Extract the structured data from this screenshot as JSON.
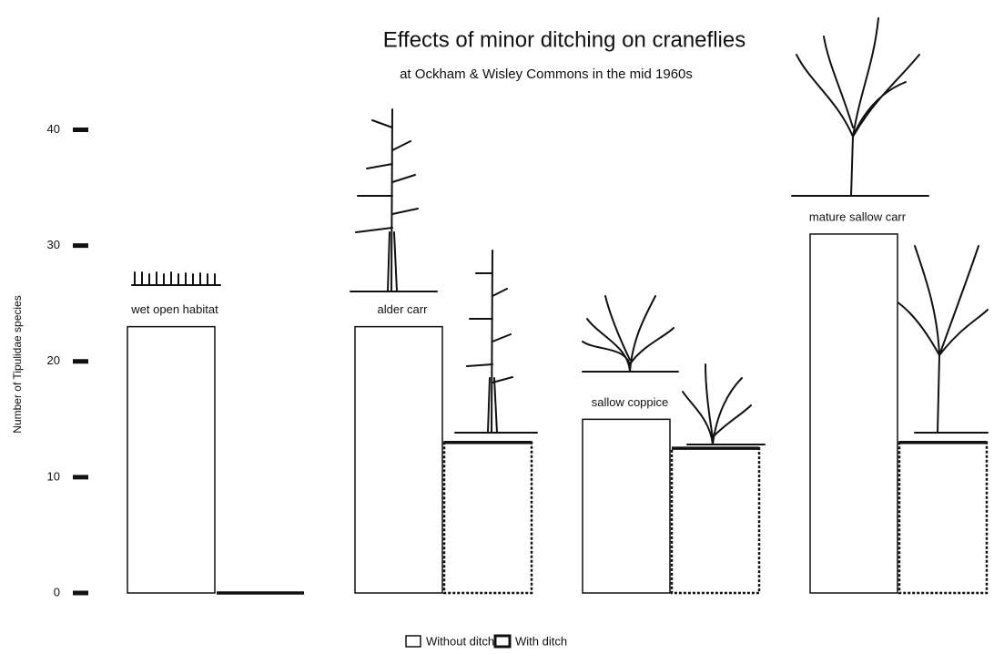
{
  "chart_data": {
    "type": "bar",
    "title": "Effects of minor ditching on craneflies",
    "subtitle": "at Ockham & Wisley Commons in the mid 1960s",
    "y_label": "Number of Tipulidae species",
    "categories": [
      "wet open habitat",
      "alder carr",
      "sallow coppice",
      "mature sallow carr"
    ],
    "series": [
      {
        "name": "Without ditch",
        "color": "#ffffff",
        "values": [
          23,
          23,
          15,
          31
        ]
      },
      {
        "name": "With ditch",
        "color": "#ffffff",
        "values": [
          0,
          13,
          12.5,
          13
        ]
      }
    ],
    "ylim": [
      0,
      45
    ],
    "yticks": [
      0,
      10,
      20,
      30,
      40
    ],
    "grid": false,
    "legend": "bottom"
  }
}
